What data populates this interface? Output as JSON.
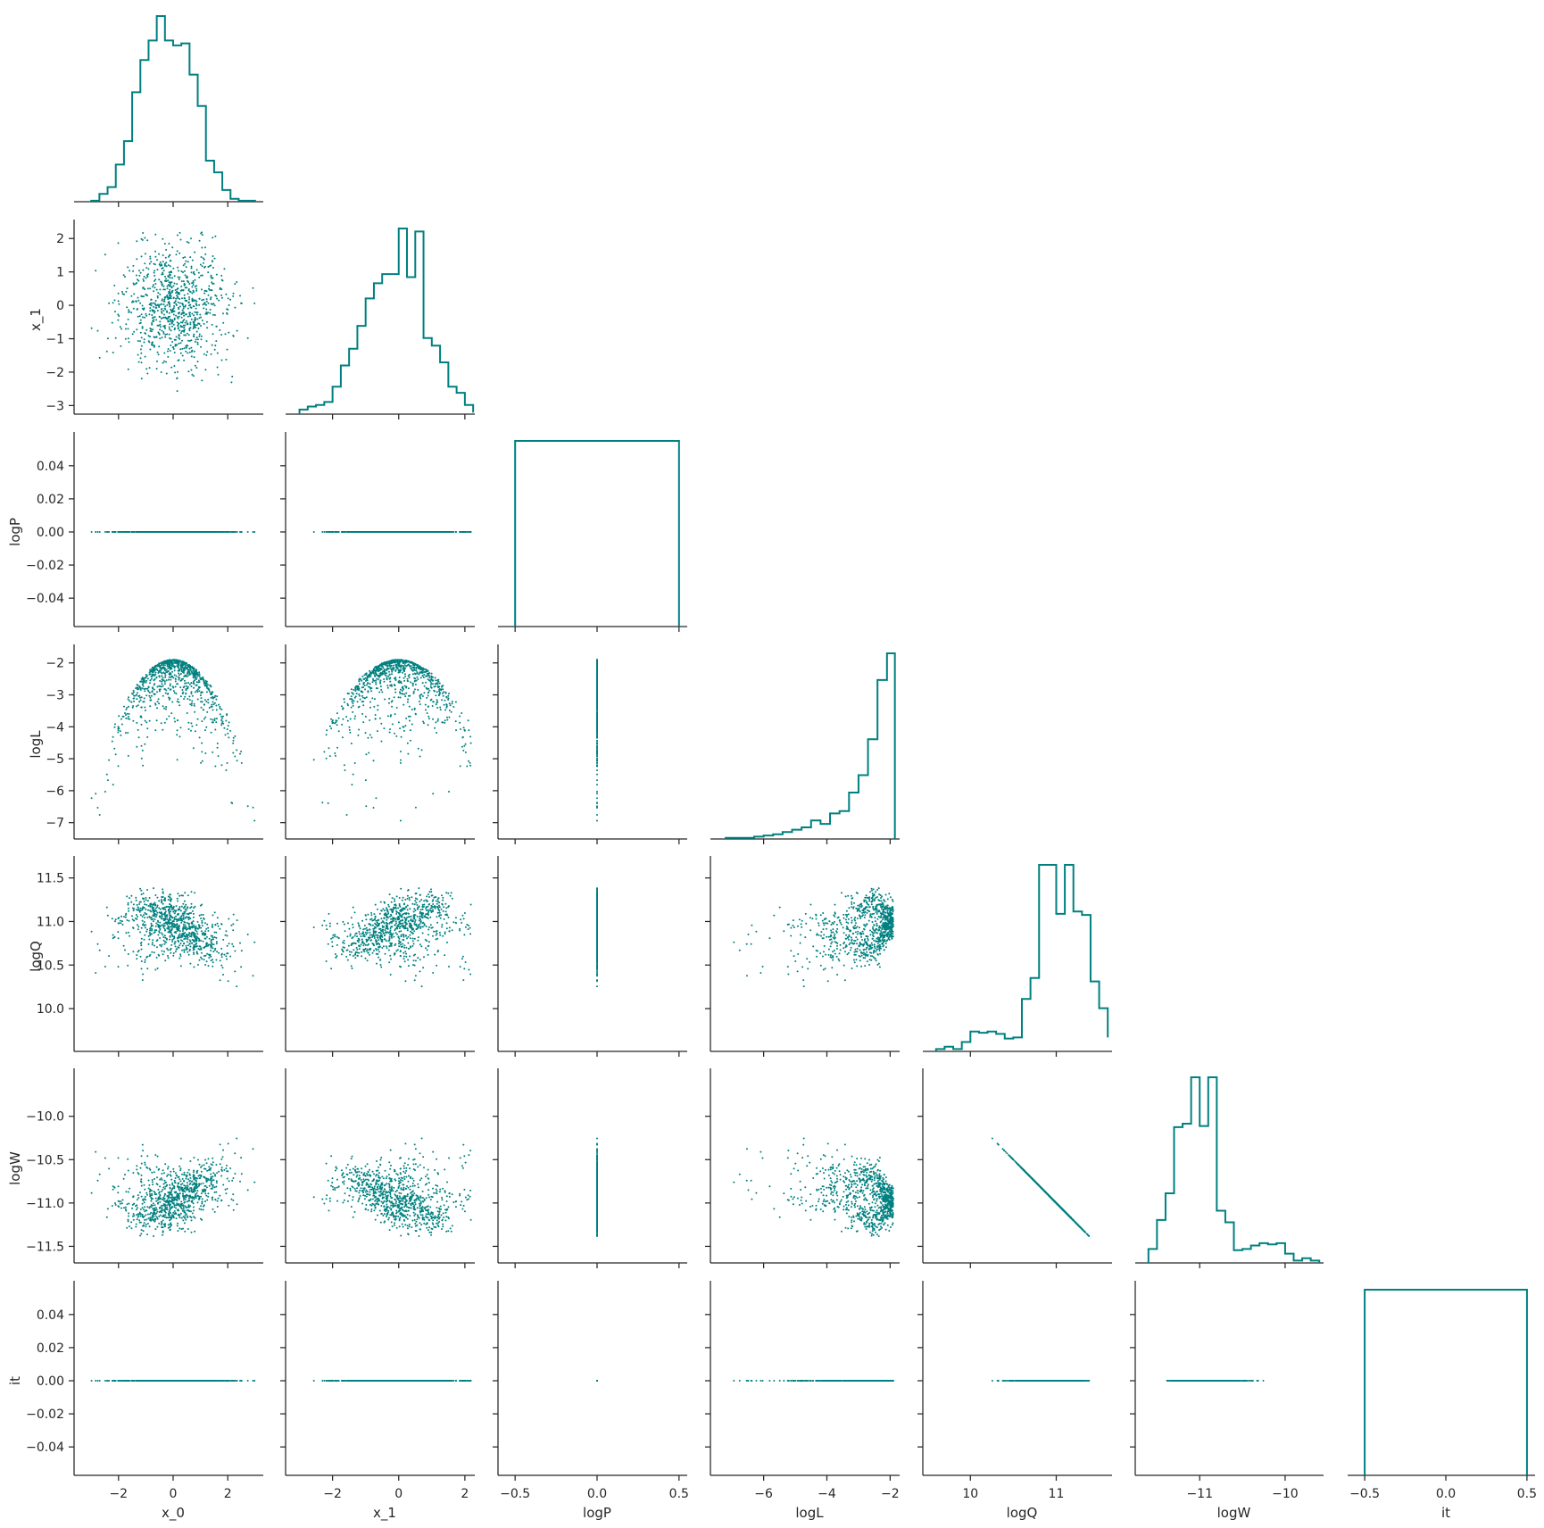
{
  "chart_data": {
    "type": "pairplot",
    "layout": "corner",
    "color": "#008080",
    "variables": [
      "x_0",
      "x_1",
      "logP",
      "logL",
      "logQ",
      "logW",
      "it"
    ],
    "axis_ranges": {
      "x_0": [
        -3.3,
        3.3
      ],
      "x_1": [
        -3.15,
        2.3
      ],
      "logP": [
        -0.055,
        0.055
      ],
      "logL": [
        -7.4,
        -1.7
      ],
      "logQ": [
        9.55,
        11.65
      ],
      "logW": [
        -11.65,
        -9.55
      ],
      "it": [
        -0.055,
        0.055
      ]
    },
    "tick_values": {
      "x_0": [
        -2,
        0,
        2
      ],
      "x_1": [
        -3,
        -2,
        -1,
        0,
        1,
        2
      ],
      "logP": [
        -0.04,
        -0.02,
        0.0,
        0.02,
        0.04
      ],
      "logL": [
        -7,
        -6,
        -5,
        -4,
        -3,
        -2
      ],
      "logQ": [
        10.0,
        10.5,
        11.0,
        11.5
      ],
      "logW": [
        -11.5,
        -11.0,
        -10.5,
        -10.0
      ],
      "it": [
        -0.04,
        -0.02,
        0.0,
        0.02,
        0.04
      ]
    },
    "tick_labels": {
      "x_0": [
        "−2",
        "0",
        "2"
      ],
      "x_1": [
        "−3",
        "−2",
        "−1",
        "0",
        "1",
        "2"
      ],
      "logP": [
        "−0.04",
        "−0.02",
        "0.00",
        "0.02",
        "0.04"
      ],
      "logL": [
        "−7",
        "−6",
        "−5",
        "−4",
        "−3",
        "−2"
      ],
      "logQ": [
        "10.0",
        "10.5",
        "11.0",
        "11.5"
      ],
      "logW": [
        "−11.5",
        "−11.0",
        "−10.5",
        "−10.0"
      ],
      "it": [
        "−0.04",
        "−0.02",
        "0.00",
        "0.02",
        "0.04"
      ]
    },
    "bottom_tick_values": {
      "x_0": [
        -2,
        0,
        2
      ],
      "x_1": [
        -2,
        0,
        2
      ],
      "logP": [
        -0.5,
        0.0,
        0.5
      ],
      "logL": [
        -6,
        -4,
        -2
      ],
      "logQ": [
        10,
        11
      ],
      "logW": [
        -11,
        -10
      ],
      "it": [
        -0.5,
        0.0,
        0.5
      ]
    },
    "bottom_tick_labels": {
      "x_0": [
        "−2",
        "0",
        "2"
      ],
      "x_1": [
        "−2",
        "0",
        "2"
      ],
      "logP": [
        "−0.5",
        "0.0",
        "0.5"
      ],
      "logL": [
        "−6",
        "−4",
        "−2"
      ],
      "logQ": [
        "10",
        "11"
      ],
      "logW": [
        "−11",
        "−10"
      ],
      "it": [
        "−0.5",
        "0.0",
        "0.5"
      ]
    },
    "bottom_axis_ranges": {
      "logP": [
        -0.55,
        0.55
      ],
      "it": [
        -0.55,
        0.55
      ]
    },
    "histograms": {
      "x_0": {
        "bin_edges": [
          -3.0,
          -2.7,
          -2.4,
          -2.1,
          -1.8,
          -1.5,
          -1.2,
          -0.9,
          -0.6,
          -0.3,
          0.0,
          0.3,
          0.6,
          0.9,
          1.2,
          1.5,
          1.8,
          2.1,
          2.4,
          2.7,
          3.0
        ],
        "counts": [
          1,
          8,
          15,
          38,
          62,
          112,
          145,
          165,
          190,
          165,
          160,
          162,
          130,
          98,
          42,
          30,
          12,
          3,
          1,
          1
        ]
      },
      "x_1": {
        "bin_edges": [
          -3.0,
          -2.75,
          -2.5,
          -2.25,
          -2.0,
          -1.75,
          -1.5,
          -1.25,
          -1.0,
          -0.75,
          -0.5,
          -0.25,
          0.0,
          0.25,
          0.5,
          0.75,
          1.0,
          1.25,
          1.5,
          1.75,
          2.0,
          2.25
        ],
        "counts": [
          3,
          5,
          6,
          8,
          18,
          32,
          43,
          58,
          76,
          86,
          92,
          92,
          122,
          90,
          120,
          50,
          45,
          34,
          18,
          14,
          6,
          1
        ]
      },
      "logP": {
        "bin_edges": [
          -0.5,
          0.5
        ],
        "counts": [
          1
        ]
      },
      "logL": {
        "bin_edges": [
          -7.2,
          -6.9,
          -6.6,
          -6.3,
          -6.0,
          -5.7,
          -5.4,
          -5.1,
          -4.8,
          -4.5,
          -4.2,
          -3.9,
          -3.6,
          -3.3,
          -3.0,
          -2.7,
          -2.4,
          -2.1,
          -1.85
        ],
        "counts": [
          1,
          1,
          1,
          2,
          3,
          4,
          6,
          8,
          10,
          16,
          13,
          22,
          24,
          40,
          55,
          86,
          137,
          160
        ]
      },
      "logQ": {
        "bin_edges": [
          9.6,
          9.7,
          9.8,
          9.9,
          10.0,
          10.1,
          10.2,
          10.3,
          10.4,
          10.5,
          10.6,
          10.7,
          10.8,
          10.9,
          11.0,
          11.1,
          11.2,
          11.3,
          11.4,
          11.5,
          11.6
        ],
        "counts": [
          2,
          4,
          2,
          8,
          17,
          16,
          17,
          15,
          11,
          12,
          45,
          63,
          160,
          160,
          118,
          160,
          120,
          117,
          60,
          37,
          12
        ]
      },
      "logW": {
        "bin_edges": [
          -11.6,
          -11.5,
          -11.4,
          -11.3,
          -11.2,
          -11.1,
          -11.0,
          -10.9,
          -10.8,
          -10.7,
          -10.6,
          -10.5,
          -10.4,
          -10.3,
          -10.2,
          -10.1,
          -10.0,
          -9.9,
          -9.8,
          -9.7,
          -9.6
        ],
        "counts": [
          12,
          37,
          60,
          117,
          120,
          160,
          118,
          160,
          45,
          35,
          11,
          12,
          15,
          17,
          16,
          17,
          8,
          2,
          4,
          2
        ]
      },
      "it": {
        "bin_edges": [
          -0.5,
          0.5
        ],
        "counts": [
          1
        ]
      }
    },
    "scatter_samples": [
      {
        "x_0": -2.6,
        "x_1": 0.3,
        "logL": -4.2
      },
      {
        "x_0": -2.0,
        "x_1": -1.2,
        "logL": -4.0
      },
      {
        "x_0": -1.5,
        "x_1": 1.6,
        "logL": -3.3
      },
      {
        "x_0": -1.0,
        "x_1": -0.6,
        "logL": -2.4
      },
      {
        "x_0": -0.5,
        "x_1": 0.2,
        "logL": -2.0
      },
      {
        "x_0": 0.0,
        "x_1": -0.1,
        "logL": -1.9
      },
      {
        "x_0": 0.4,
        "x_1": 0.9,
        "logL": -2.2
      },
      {
        "x_0": 0.9,
        "x_1": -0.7,
        "logL": -2.3
      },
      {
        "x_0": 1.3,
        "x_1": 0.5,
        "logL": -2.6
      },
      {
        "x_0": 1.8,
        "x_1": 1.4,
        "logL": -3.6
      },
      {
        "x_0": 2.2,
        "x_1": -1.6,
        "logL": -4.6
      },
      {
        "x_0": 2.8,
        "x_1": -0.2,
        "logL": -6.4
      },
      {
        "x_0": -1.3,
        "x_1": -2.3,
        "logL": -6.9
      }
    ],
    "logQ_of_logL_envelope": [
      {
        "logL": -7.0,
        "logQ": 9.95
      },
      {
        "logL": -6.0,
        "logQ": 10.0
      },
      {
        "logL": -5.0,
        "logQ": 10.3
      },
      {
        "logL": -4.0,
        "logQ": 10.6
      },
      {
        "logL": -3.0,
        "logQ": 10.9
      },
      {
        "logL": -2.5,
        "logQ": 11.0
      },
      {
        "logL": -2.0,
        "logQ": 11.0
      }
    ]
  }
}
